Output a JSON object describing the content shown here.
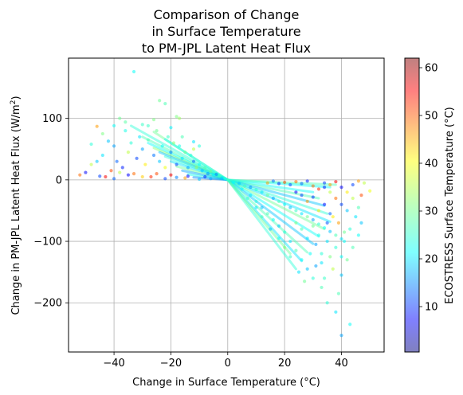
{
  "chart_data": {
    "type": "scatter",
    "title": [
      "Comparison of Change",
      "in Surface Temperature",
      "to PM-JPL Latent Heat Flux"
    ],
    "xlabel": "Change in Surface Temperature (°C)",
    "ylabel_prefix": "Change in PM-JPL Latent Heat Flux (W/m",
    "ylabel_sup": "2",
    "ylabel_suffix": ")",
    "xlim": [
      -56,
      55
    ],
    "ylim": [
      -280,
      198
    ],
    "xticks": [
      -40,
      -20,
      0,
      20,
      40
    ],
    "xtick_labels": [
      "−40",
      "−20",
      "0",
      "20",
      "40"
    ],
    "yticks": [
      100,
      0,
      -100,
      -200
    ],
    "ytick_labels": [
      "100",
      "0",
      "−100",
      "−200"
    ],
    "grid": true,
    "colorbar": {
      "label": "ECOSTRESS Surface Temperature (°C)",
      "range": [
        0.5,
        62
      ],
      "ticks": [
        10,
        20,
        30,
        40,
        50,
        60
      ],
      "tick_labels": [
        "10",
        "20",
        "30",
        "40",
        "50",
        "60"
      ],
      "colormap": "jet",
      "alpha": 0.5
    },
    "point_alpha": 0.55,
    "series": [
      {
        "points": [
          [
            -33,
            176,
            24
          ],
          [
            -24,
            129,
            30
          ],
          [
            -22,
            124,
            28
          ],
          [
            -18,
            103,
            31
          ],
          [
            -17,
            100,
            33
          ],
          [
            -30,
            90,
            27
          ],
          [
            -46,
            87,
            45
          ],
          [
            -38,
            100,
            30
          ],
          [
            -36,
            80,
            25
          ],
          [
            -42,
            63,
            20
          ],
          [
            -40,
            55,
            18
          ],
          [
            -44,
            40,
            22
          ],
          [
            -48,
            25,
            35
          ],
          [
            -52,
            8,
            48
          ],
          [
            -50,
            12,
            8
          ],
          [
            -45,
            6,
            12
          ],
          [
            -43,
            5,
            55
          ],
          [
            -41,
            15,
            50
          ],
          [
            -39,
            30,
            14
          ],
          [
            -37,
            20,
            10
          ],
          [
            -35,
            45,
            35
          ],
          [
            -34,
            60,
            26
          ],
          [
            -33,
            10,
            48
          ],
          [
            -32,
            35,
            12
          ],
          [
            -31,
            70,
            22
          ],
          [
            -30,
            50,
            18
          ],
          [
            -29,
            25,
            40
          ],
          [
            -28,
            65,
            28
          ],
          [
            -27,
            5,
            52
          ],
          [
            -26,
            40,
            15
          ],
          [
            -25,
            80,
            30
          ],
          [
            -24,
            30,
            20
          ],
          [
            -23,
            55,
            24
          ],
          [
            -22,
            20,
            38
          ],
          [
            -21,
            70,
            27
          ],
          [
            -20,
            45,
            16
          ],
          [
            -19,
            60,
            32
          ],
          [
            -18,
            25,
            12
          ],
          [
            -17,
            55,
            25
          ],
          [
            -16,
            35,
            22
          ],
          [
            -15,
            45,
            30
          ],
          [
            -14,
            20,
            18
          ],
          [
            -13,
            40,
            26
          ],
          [
            -12,
            30,
            14
          ],
          [
            -11,
            20,
            33
          ],
          [
            -10,
            25,
            24
          ],
          [
            -9,
            15,
            20
          ],
          [
            -8,
            20,
            28
          ],
          [
            -7,
            10,
            17
          ],
          [
            -6,
            14,
            30
          ],
          [
            -5,
            8,
            23
          ],
          [
            -4,
            9,
            16
          ],
          [
            -3,
            6,
            27
          ],
          [
            -2,
            3,
            21
          ],
          [
            -1,
            2,
            25
          ],
          [
            -8,
            5,
            10
          ],
          [
            -12,
            50,
            35
          ],
          [
            -15,
            3,
            45
          ],
          [
            -20,
            8,
            55
          ],
          [
            -25,
            10,
            50
          ],
          [
            -30,
            5,
            42
          ],
          [
            -35,
            8,
            8
          ],
          [
            -38,
            12,
            35
          ],
          [
            -46,
            30,
            20
          ],
          [
            -48,
            58,
            26
          ],
          [
            -44,
            75,
            31
          ],
          [
            -40,
            88,
            24
          ],
          [
            -36,
            94,
            29
          ],
          [
            -28,
            88,
            27
          ],
          [
            -26,
            98,
            31
          ],
          [
            -20,
            85,
            23
          ],
          [
            -16,
            70,
            28
          ],
          [
            -12,
            62,
            22
          ],
          [
            -10,
            55,
            26
          ],
          [
            -22,
            2,
            12
          ],
          [
            -18,
            4,
            16
          ],
          [
            -14,
            6,
            8
          ],
          [
            -10,
            1,
            20
          ],
          [
            -6,
            2,
            18
          ],
          [
            -40,
            2,
            14
          ],
          [
            2,
            -4,
            24
          ],
          [
            4,
            -6,
            20
          ],
          [
            6,
            -10,
            28
          ],
          [
            8,
            -12,
            17
          ],
          [
            10,
            -16,
            26
          ],
          [
            12,
            -20,
            22
          ],
          [
            14,
            -25,
            30
          ],
          [
            16,
            -30,
            18
          ],
          [
            18,
            -35,
            28
          ],
          [
            20,
            -40,
            24
          ],
          [
            22,
            -45,
            20
          ],
          [
            24,
            -50,
            27
          ],
          [
            26,
            -55,
            22
          ],
          [
            28,
            -60,
            30
          ],
          [
            30,
            -65,
            18
          ],
          [
            32,
            -72,
            26
          ],
          [
            34,
            -78,
            24
          ],
          [
            36,
            -84,
            20
          ],
          [
            38,
            -90,
            28
          ],
          [
            40,
            -96,
            22
          ],
          [
            5,
            -15,
            24
          ],
          [
            8,
            -25,
            22
          ],
          [
            10,
            -35,
            26
          ],
          [
            12,
            -45,
            20
          ],
          [
            14,
            -55,
            28
          ],
          [
            16,
            -65,
            24
          ],
          [
            18,
            -75,
            20
          ],
          [
            20,
            -85,
            26
          ],
          [
            22,
            -100,
            22
          ],
          [
            24,
            -115,
            28
          ],
          [
            26,
            -130,
            24
          ],
          [
            28,
            -145,
            20
          ],
          [
            30,
            -160,
            26
          ],
          [
            25,
            -150,
            22
          ],
          [
            27,
            -165,
            30
          ],
          [
            31,
            -140,
            18
          ],
          [
            33,
            -120,
            26
          ],
          [
            35,
            -100,
            22
          ],
          [
            22,
            -125,
            27
          ],
          [
            20,
            -110,
            31
          ],
          [
            18,
            -95,
            24
          ],
          [
            15,
            -80,
            20
          ],
          [
            12,
            -60,
            28
          ],
          [
            10,
            -45,
            22
          ],
          [
            7,
            -30,
            26
          ],
          [
            30,
            -10,
            48
          ],
          [
            32,
            -15,
            52
          ],
          [
            34,
            -5,
            12
          ],
          [
            36,
            -8,
            45
          ],
          [
            38,
            -3,
            55
          ],
          [
            40,
            -12,
            8
          ],
          [
            42,
            -20,
            40
          ],
          [
            44,
            -30,
            35
          ],
          [
            46,
            -45,
            28
          ],
          [
            45,
            -60,
            22
          ],
          [
            43,
            -80,
            26
          ],
          [
            41,
            -100,
            24
          ],
          [
            42,
            -130,
            30
          ],
          [
            40,
            -155,
            20
          ],
          [
            39,
            -185,
            28
          ],
          [
            40,
            -253,
            18
          ],
          [
            43,
            -235,
            24
          ],
          [
            38,
            -215,
            22
          ],
          [
            35,
            -200,
            26
          ],
          [
            33,
            -175,
            28
          ],
          [
            48,
            -5,
            35
          ],
          [
            50,
            -18,
            38
          ],
          [
            47,
            -25,
            50
          ],
          [
            44,
            -8,
            12
          ],
          [
            46,
            -2,
            45
          ],
          [
            28,
            -2,
            10
          ],
          [
            26,
            -6,
            14
          ],
          [
            24,
            -3,
            48
          ],
          [
            22,
            -8,
            12
          ],
          [
            20,
            -4,
            50
          ],
          [
            18,
            -6,
            10
          ],
          [
            16,
            -2,
            15
          ],
          [
            14,
            -5,
            45
          ],
          [
            30,
            -28,
            11
          ],
          [
            34,
            -40,
            9
          ],
          [
            36,
            -55,
            14
          ],
          [
            32,
            -50,
            40
          ],
          [
            28,
            -35,
            45
          ],
          [
            26,
            -25,
            12
          ],
          [
            24,
            -20,
            8
          ],
          [
            38,
            -30,
            48
          ],
          [
            40,
            -40,
            12
          ],
          [
            42,
            -50,
            20
          ],
          [
            36,
            -20,
            35
          ],
          [
            34,
            -12,
            10
          ],
          [
            30,
            -75,
            30
          ],
          [
            32,
            -90,
            25
          ],
          [
            28,
            -95,
            22
          ],
          [
            26,
            -80,
            28
          ],
          [
            24,
            -70,
            31
          ],
          [
            35,
            -70,
            13
          ],
          [
            37,
            -60,
            40
          ],
          [
            39,
            -70,
            45
          ],
          [
            41,
            -85,
            30
          ],
          [
            44,
            -110,
            28
          ],
          [
            46,
            -90,
            24
          ],
          [
            47,
            -70,
            20
          ],
          [
            29,
            -120,
            24
          ],
          [
            31,
            -105,
            18
          ],
          [
            33,
            -135,
            22
          ],
          [
            37,
            -145,
            35
          ],
          [
            34,
            -160,
            27
          ],
          [
            36,
            -125,
            31
          ],
          [
            38,
            -110,
            26
          ],
          [
            40,
            -125,
            24
          ]
        ]
      }
    ],
    "fan_lines": [
      [
        -30,
        70,
        28
      ],
      [
        -28,
        60,
        24
      ],
      [
        -26,
        52,
        32
      ],
      [
        -24,
        45,
        20
      ],
      [
        -22,
        38,
        26
      ],
      [
        -20,
        30,
        22
      ],
      [
        -18,
        22,
        30
      ],
      [
        -16,
        15,
        18
      ],
      [
        -14,
        9,
        25
      ],
      [
        -12,
        4,
        16
      ],
      [
        -34,
        88,
        26
      ],
      [
        -26,
        78,
        30
      ],
      [
        -22,
        66,
        24
      ],
      [
        30,
        -20,
        24
      ],
      [
        32,
        -30,
        28
      ],
      [
        34,
        -42,
        20
      ],
      [
        35,
        -55,
        26
      ],
      [
        36,
        -68,
        22
      ],
      [
        34,
        -80,
        30
      ],
      [
        32,
        -92,
        24
      ],
      [
        30,
        -104,
        20
      ],
      [
        28,
        -118,
        28
      ],
      [
        26,
        -132,
        22
      ],
      [
        24,
        -145,
        26
      ],
      [
        22,
        -120,
        30
      ],
      [
        36,
        -12,
        24
      ],
      [
        38,
        -8,
        28
      ]
    ]
  }
}
